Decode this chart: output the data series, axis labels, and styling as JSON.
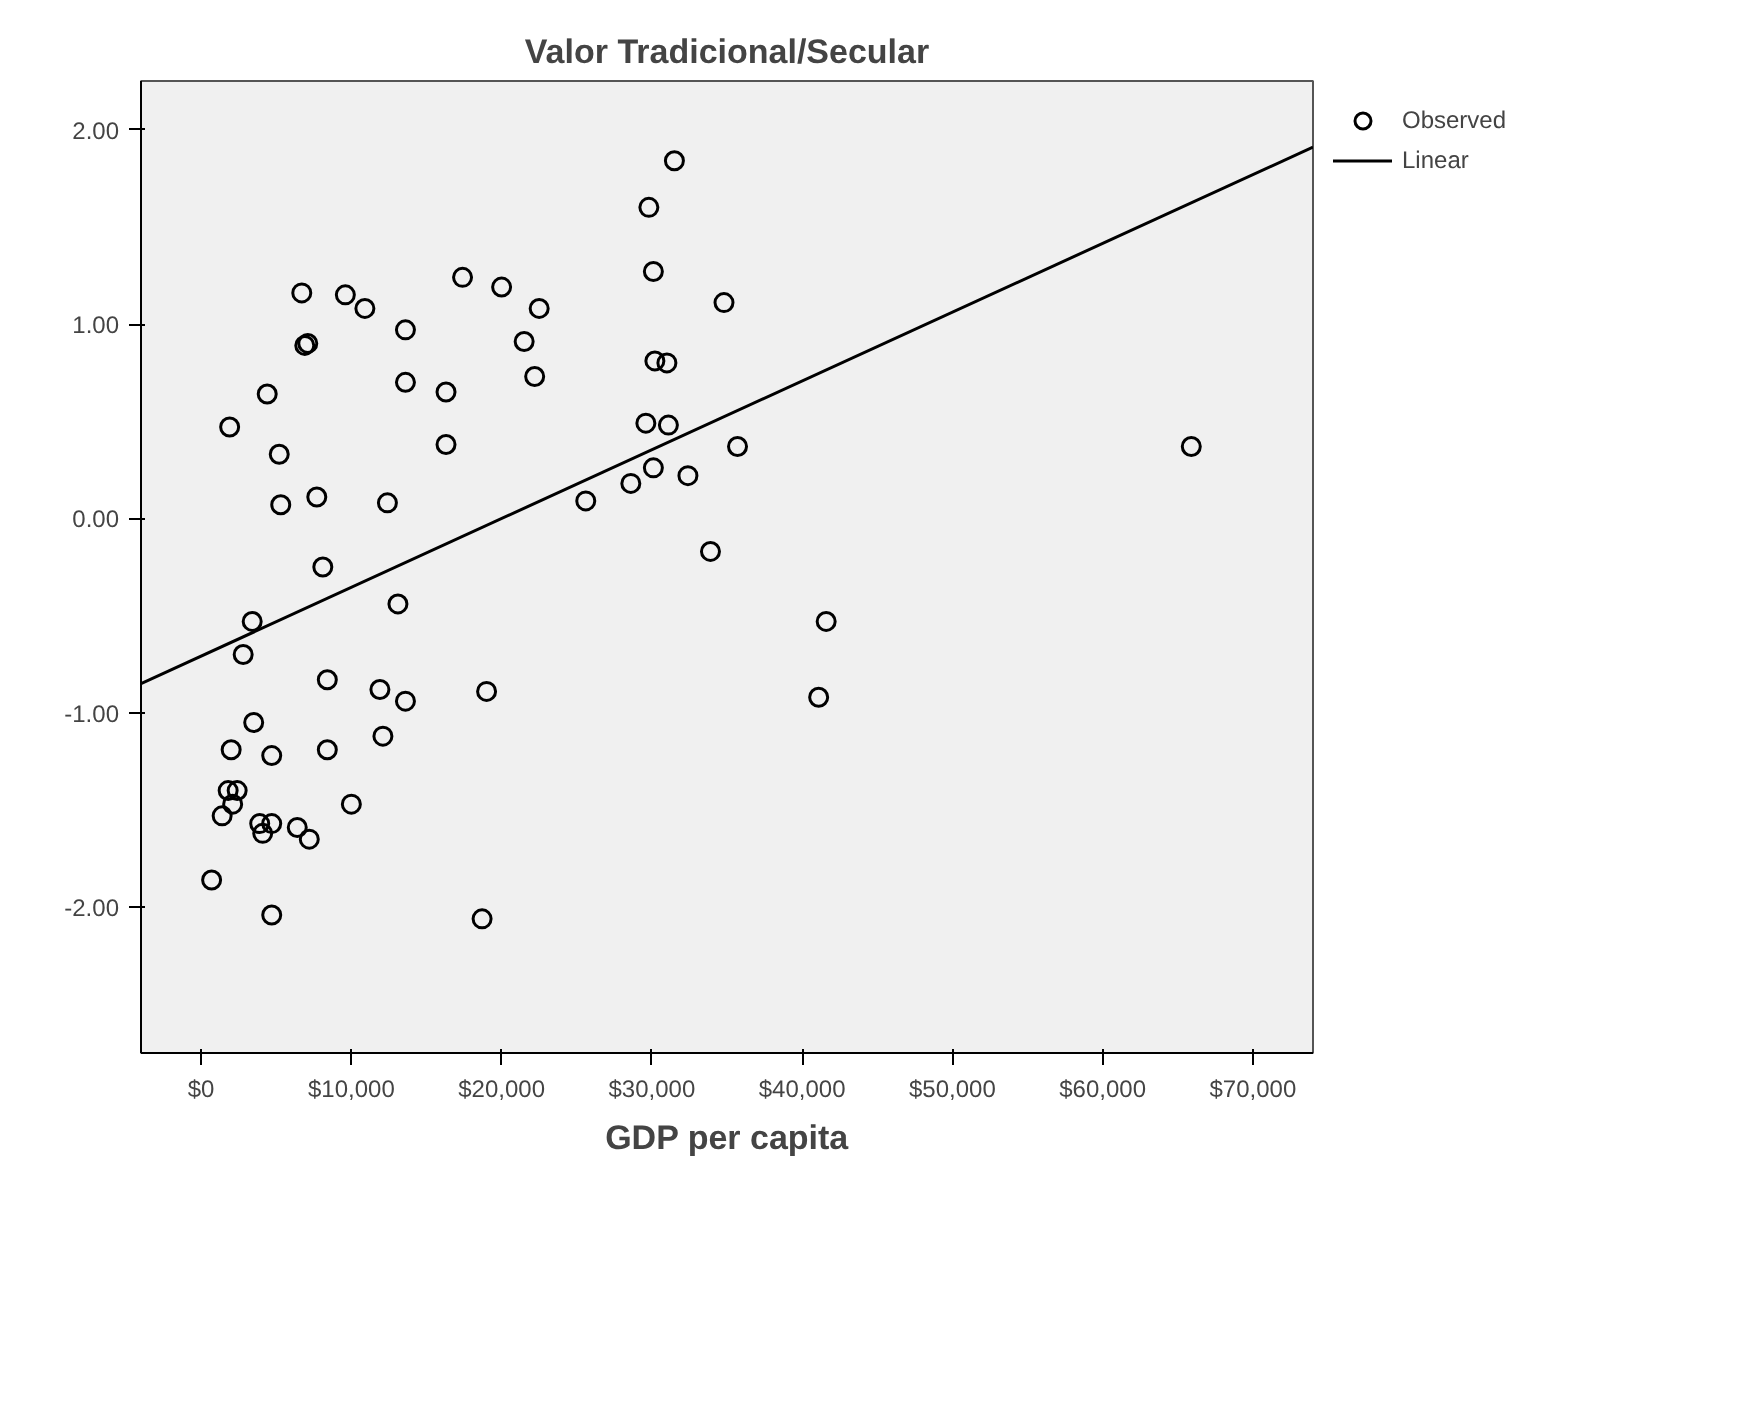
{
  "chart_data": {
    "type": "scatter",
    "title": "Valor Tradicional/Secular",
    "xlabel": "GDP per capita",
    "xlim": [
      -4000,
      74000
    ],
    "ylim": [
      -2.75,
      2.25
    ],
    "xticks": [
      {
        "value": 0,
        "label": "$0"
      },
      {
        "value": 10000,
        "label": "$10,000"
      },
      {
        "value": 20000,
        "label": "$20,000"
      },
      {
        "value": 30000,
        "label": "$30,000"
      },
      {
        "value": 40000,
        "label": "$40,000"
      },
      {
        "value": 50000,
        "label": "$50,000"
      },
      {
        "value": 60000,
        "label": "$60,000"
      },
      {
        "value": 70000,
        "label": "$70,000"
      }
    ],
    "yticks": [
      {
        "value": -2,
        "label": "-2.00"
      },
      {
        "value": -1,
        "label": "-1.00"
      },
      {
        "value": 0,
        "label": "0.00"
      },
      {
        "value": 1,
        "label": "1.00"
      },
      {
        "value": 2,
        "label": "2.00"
      }
    ],
    "grid": false,
    "legend": "right",
    "series": [
      {
        "name": "Observed",
        "marker": "circle",
        "color": "#000000",
        "x": [
          6700,
          9600,
          10900,
          6900,
          7100,
          13600,
          17400,
          20000,
          22500,
          21500,
          22200,
          4400,
          1900,
          5200,
          13600,
          16300,
          16300,
          5300,
          7700,
          12400,
          31500,
          29800,
          30100,
          34800,
          30200,
          31000,
          29600,
          31100,
          35700,
          30100,
          28600,
          32400,
          25600,
          65900,
          33900,
          41600,
          41100,
          8100,
          13100,
          3400,
          2800,
          8400,
          11900,
          13600,
          19000,
          3500,
          12100,
          2000,
          4700,
          8400,
          1800,
          2400,
          2100,
          1400,
          10000,
          3900,
          4700,
          4100,
          6400,
          7200,
          700,
          4700,
          18700
        ],
        "values": [
          1.16,
          1.15,
          1.08,
          0.89,
          0.9,
          0.97,
          1.24,
          1.19,
          1.08,
          0.91,
          0.73,
          0.64,
          0.47,
          0.33,
          0.7,
          0.65,
          0.38,
          0.07,
          0.11,
          0.08,
          1.84,
          1.6,
          1.27,
          1.11,
          0.81,
          0.8,
          0.49,
          0.48,
          0.37,
          0.26,
          0.18,
          0.22,
          0.09,
          0.37,
          -0.17,
          -0.53,
          -0.92,
          -0.25,
          -0.44,
          -0.53,
          -0.7,
          -0.83,
          -0.88,
          -0.94,
          -0.89,
          -1.05,
          -1.12,
          -1.19,
          -1.22,
          -1.19,
          -1.4,
          -1.4,
          -1.47,
          -1.53,
          -1.47,
          -1.57,
          -1.57,
          -1.62,
          -1.59,
          -1.65,
          -1.86,
          -2.04,
          -2.06
        ]
      },
      {
        "name": "Linear",
        "type": "line",
        "color": "#000000",
        "x": [
          -4000,
          74000
        ],
        "values": [
          -0.85,
          1.91
        ]
      }
    ]
  }
}
